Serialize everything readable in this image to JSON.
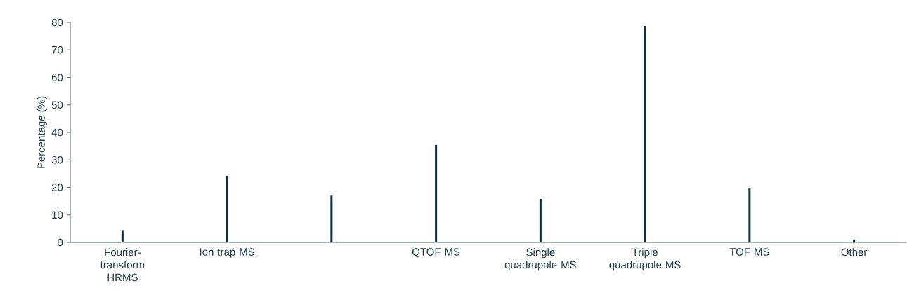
{
  "chart_data": {
    "type": "bar",
    "ylabel": "Percentage (%)",
    "categories": [
      "Fourier-transform HRMS",
      "Ion trap MS",
      null,
      "QTOF MS",
      "Single quadrupole MS",
      "Triple quadrupole MS",
      "TOF MS",
      "Other"
    ],
    "values": [
      4.5,
      24.2,
      17,
      35.4,
      15.8,
      78.7,
      19.9,
      1.0
    ],
    "color": "#0d2d40",
    "ylim": [
      0,
      80
    ],
    "yticks": [
      0,
      10,
      20,
      30,
      40,
      50,
      60,
      70,
      80
    ],
    "grid": false
  }
}
